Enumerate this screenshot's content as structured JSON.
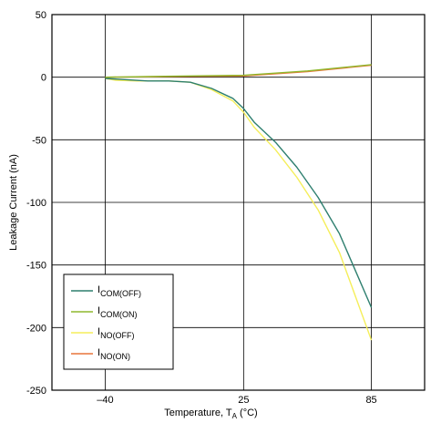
{
  "chart_data": {
    "type": "line",
    "xlabel": {
      "text": "Temperature, T",
      "sub": "A",
      "unit": " (°C)"
    },
    "ylabel": "Leakage Current (nA)",
    "xlim": [
      -65,
      110
    ],
    "ylim": [
      -250,
      50
    ],
    "x_ticks": [
      -40,
      25,
      85
    ],
    "x_tick_labels": [
      "–40",
      "25",
      "85"
    ],
    "y_ticks": [
      50,
      0,
      -50,
      -100,
      -150,
      -200,
      -250
    ],
    "y_tick_labels": [
      "50",
      "0",
      "-50",
      "-100",
      "-150",
      "-200",
      "-250"
    ],
    "grid": true,
    "legend_position": "bottom-left",
    "series": [
      {
        "name": "I",
        "sub": "COM(OFF)",
        "color": "#2e7f6f",
        "x": [
          -40,
          -30,
          -20,
          -10,
          0,
          10,
          20,
          25,
          30,
          40,
          50,
          60,
          70,
          85
        ],
        "y": [
          -1,
          -2,
          -3,
          -3,
          -4,
          -9,
          -17,
          -25,
          -36,
          -52,
          -72,
          -96,
          -125,
          -184
        ]
      },
      {
        "name": "I",
        "sub": "COM(ON)",
        "color": "#8fb82e",
        "x": [
          -40,
          -20,
          0,
          25,
          55,
          85
        ],
        "y": [
          0,
          0.5,
          1,
          1.5,
          5,
          10
        ]
      },
      {
        "name": "I",
        "sub": "NO(OFF)",
        "color": "#f5ee5a",
        "x": [
          -40,
          -35,
          -25,
          -10,
          0,
          10,
          20,
          25,
          30,
          40,
          50,
          60,
          70,
          85
        ],
        "y": [
          -1,
          -2.5,
          -3,
          -3,
          -4,
          -10,
          -19,
          -28,
          -40,
          -58,
          -80,
          -106,
          -140,
          -210
        ]
      },
      {
        "name": "I",
        "sub": "NO(ON)",
        "color": "#e9753a",
        "x": [
          -40,
          -20,
          0,
          25,
          55,
          85
        ],
        "y": [
          0,
          0.3,
          0.6,
          1,
          4.5,
          9.5
        ]
      }
    ]
  }
}
